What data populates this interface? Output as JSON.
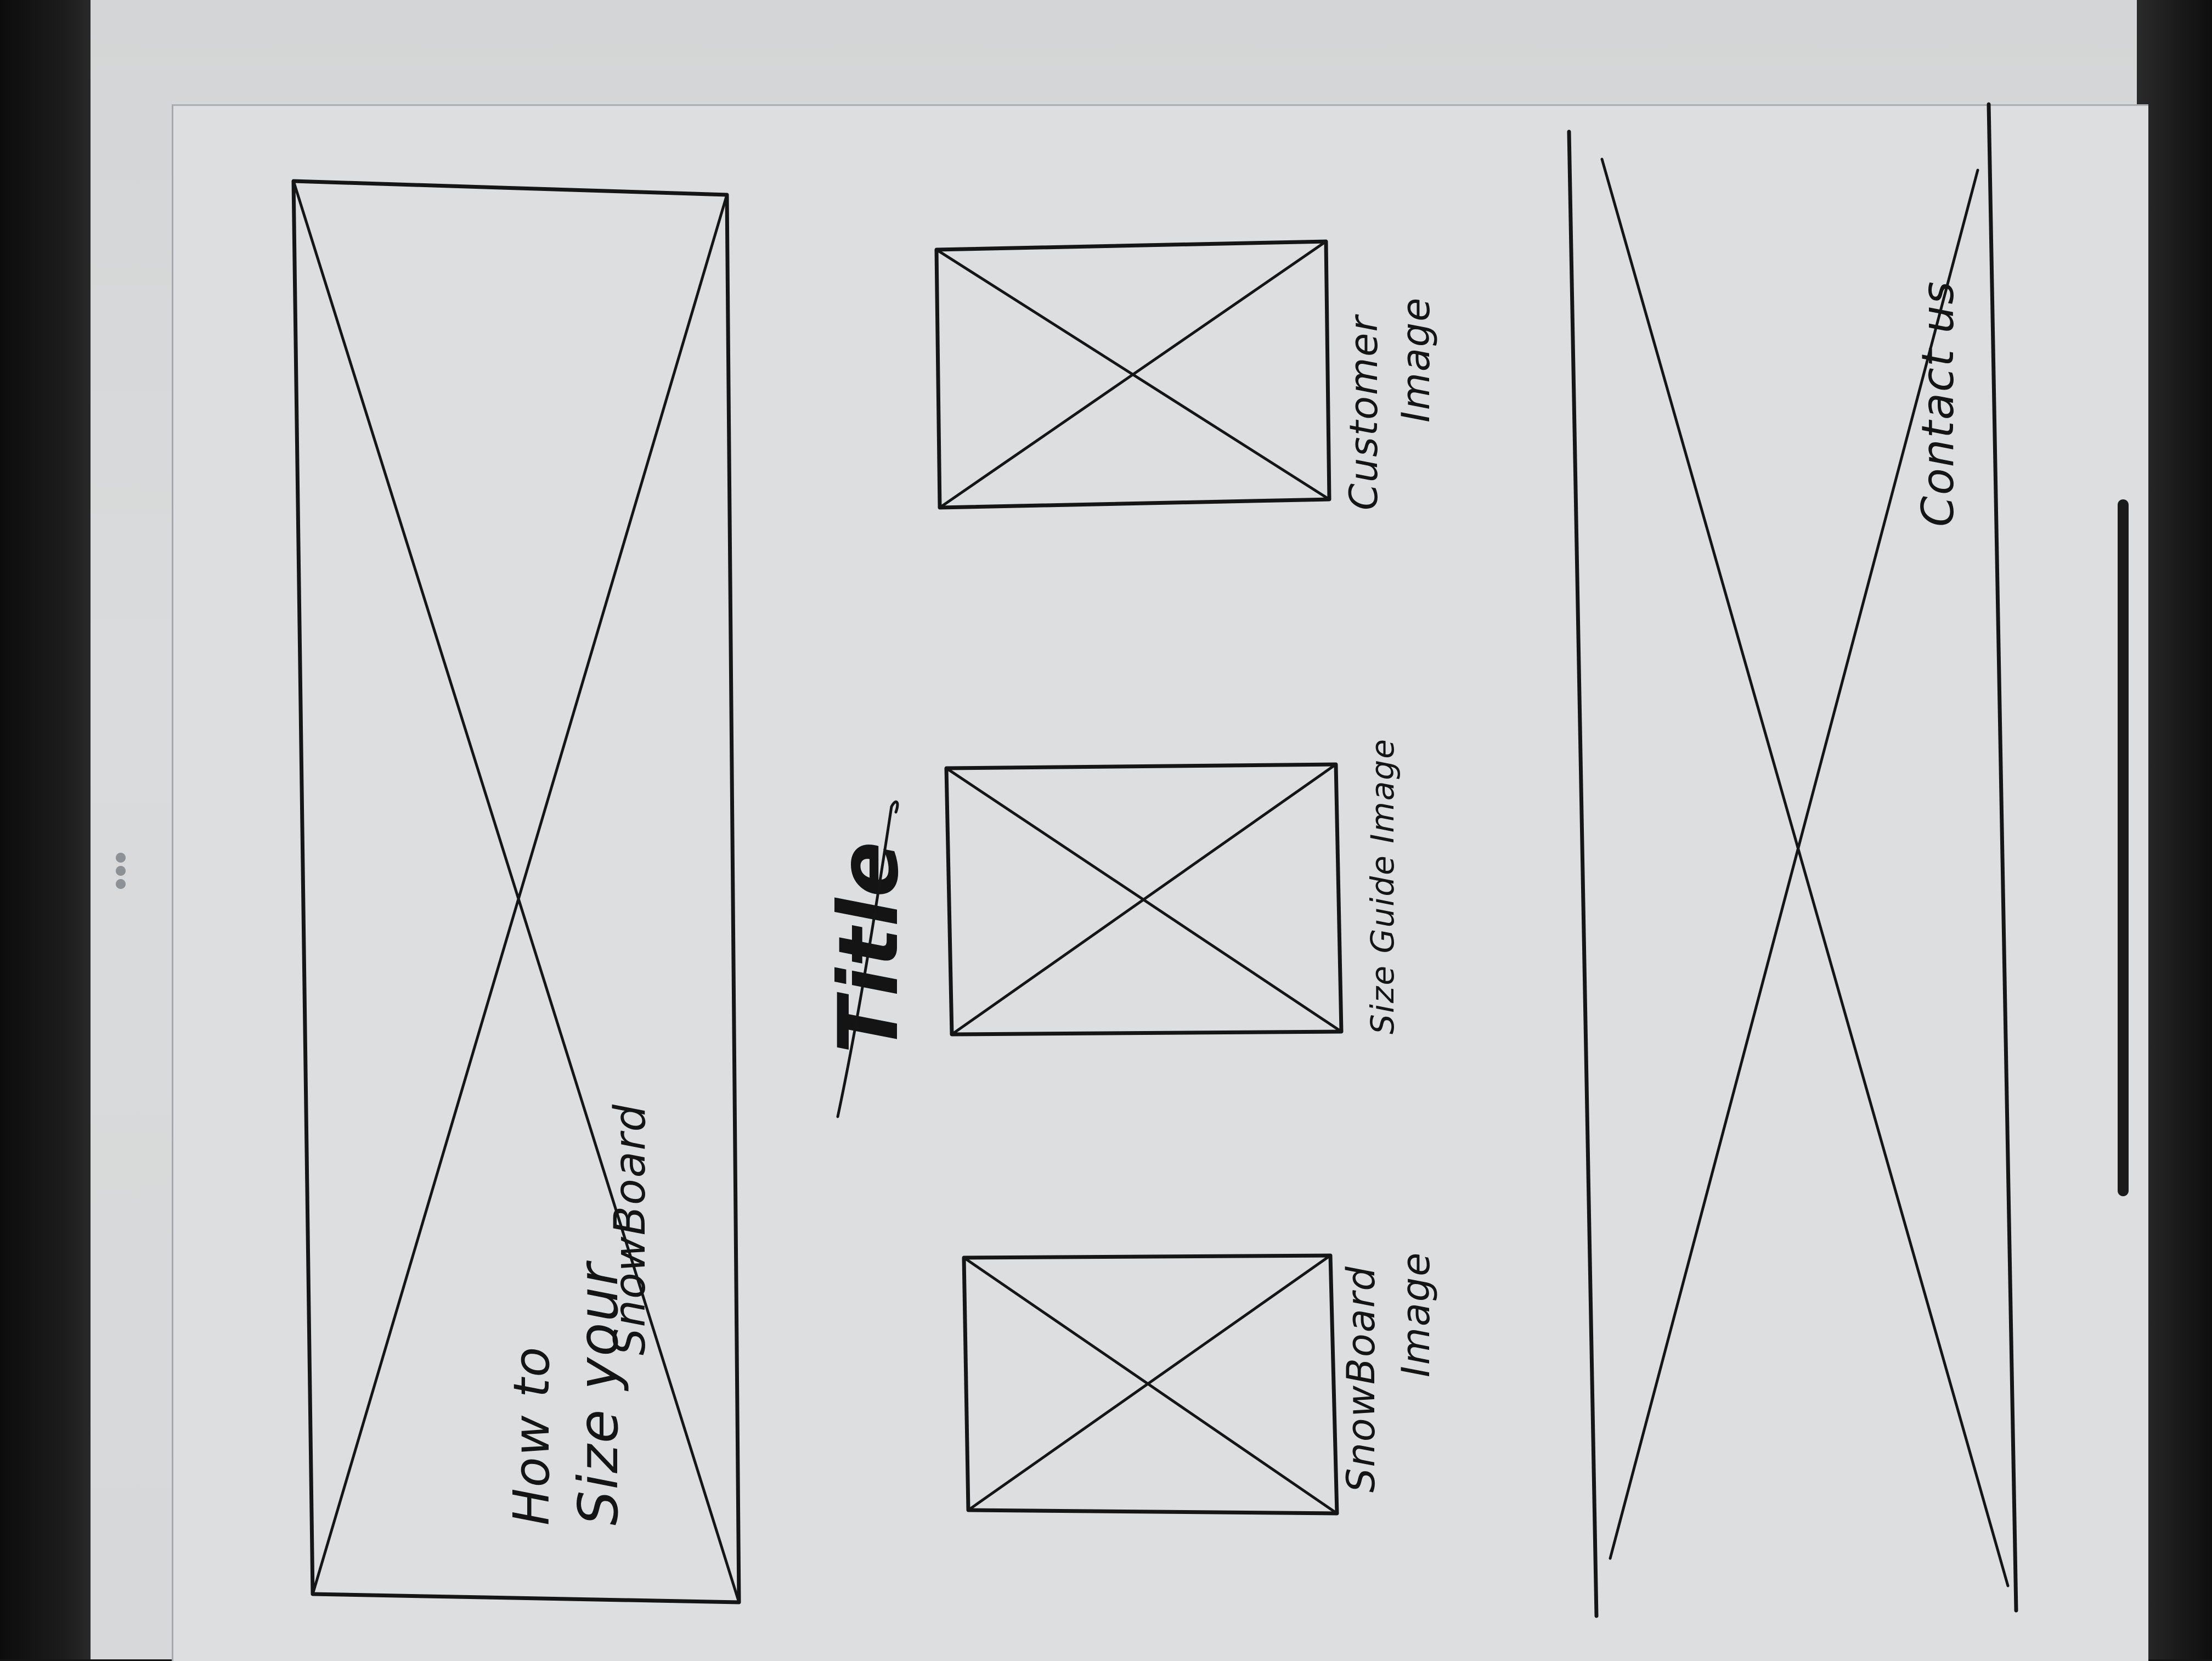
{
  "labels": {
    "hero_line1": "How to",
    "hero_line2": "Size your",
    "hero_line3": "SnowBoard",
    "title": "Title",
    "card1_line1": "SnowBoard",
    "card1_line2": "Image",
    "card2": "Size Guide Image",
    "card3_line1": "Customer",
    "card3_line2": "Image",
    "footer": "Contact us"
  },
  "colors": {
    "paper": "#dcdedf",
    "ink": "#151515",
    "bezel": "#151515"
  },
  "icons": {
    "more_options": "more-dots-icon",
    "home_indicator": "home-indicator-bar"
  }
}
